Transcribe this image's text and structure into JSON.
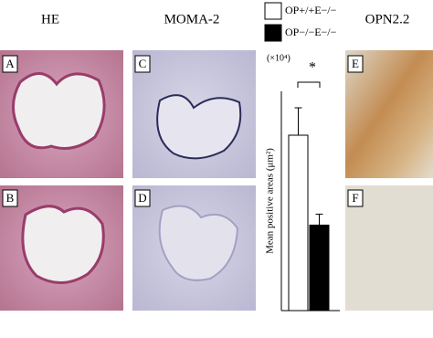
{
  "figure": {
    "columns": [
      "HE",
      "MOMA-2",
      "OPN2.2"
    ],
    "panels": [
      "A",
      "B",
      "C",
      "D",
      "E",
      "F"
    ]
  },
  "chart_data": {
    "type": "bar",
    "y_label": "Mean positive areas (μm²)",
    "y_unit": "(×10⁴)",
    "annotation": "*",
    "categories": [
      null
    ],
    "ylim": [
      0,
      10
    ],
    "series": [
      {
        "name": "OP+/+E−/−",
        "color": "#ffffff",
        "values": [
          8.0
        ],
        "errors": [
          1.25
        ]
      },
      {
        "name": "OP−/−E−/−",
        "color": "#000000",
        "values": [
          3.9
        ],
        "errors": [
          0.5
        ]
      }
    ]
  }
}
